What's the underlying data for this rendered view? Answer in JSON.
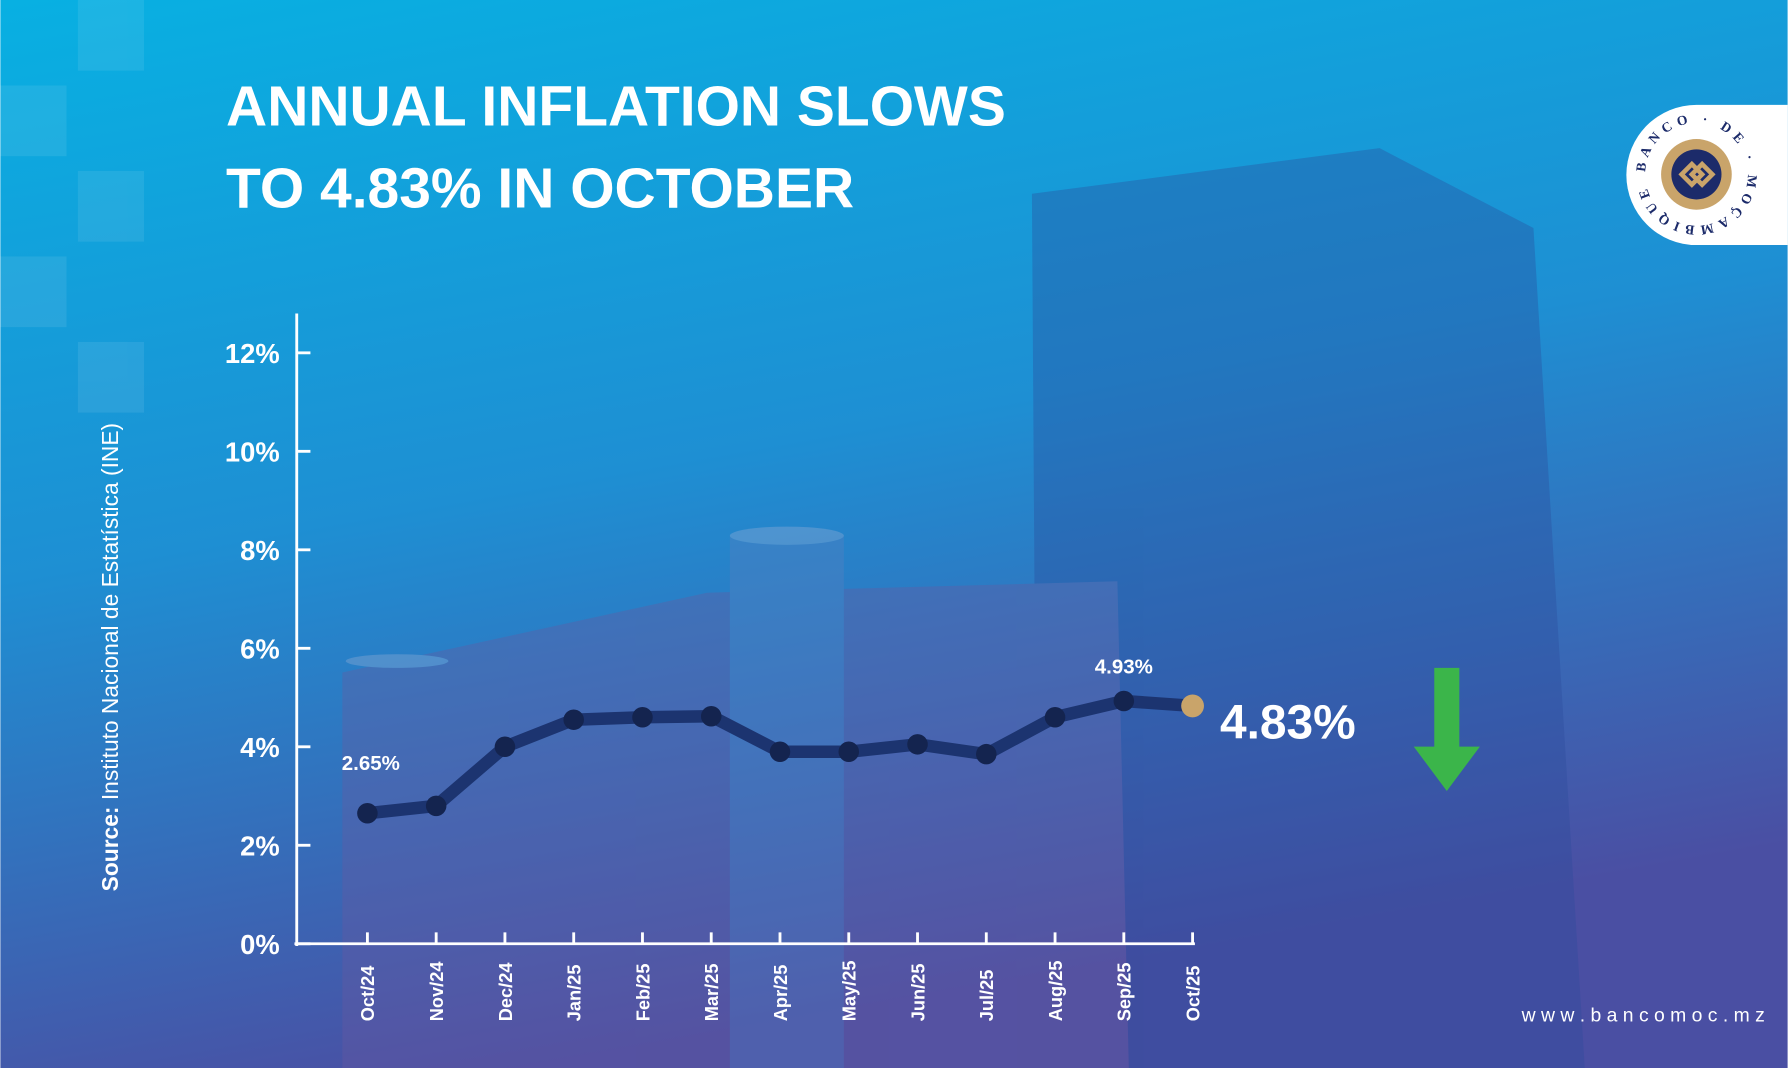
{
  "title": {
    "line1": "ANNUAL INFLATION SLOWS",
    "line2": "TO 4.83% IN OCTOBER"
  },
  "source": {
    "label": "Source:",
    "text": " Instituto Nacional de Estatística (INE)"
  },
  "website": "w w w . b a n c o m o c . m z",
  "logo": {
    "text": "BANCO · DE · MOÇAMBIQUE"
  },
  "highlight": {
    "value": "4.83%",
    "arrow": "down-arrow-icon",
    "arrow_color": "#3bb54a"
  },
  "colors": {
    "line": "#1c3470",
    "point": "#14244f",
    "last_point": "#c9a46a",
    "bg_top": "#08b0e2",
    "bg_bottom": "#3f55a5"
  },
  "chart_data": {
    "type": "line",
    "title": "",
    "xlabel": "",
    "ylabel": "",
    "categories": [
      "Oct/24",
      "Nov/24",
      "Dec/24",
      "Jan/25",
      "Feb/25",
      "Mar/25",
      "Apr/25",
      "May/25",
      "Jun/25",
      "Jul/25",
      "Aug/25",
      "Sep/25",
      "Oct/25"
    ],
    "values": [
      2.65,
      2.8,
      4.0,
      4.55,
      4.6,
      4.62,
      3.9,
      3.9,
      4.05,
      3.85,
      4.6,
      4.93,
      4.83
    ],
    "y_ticks": [
      "0%",
      "2%",
      "4%",
      "6%",
      "8%",
      "10%",
      "12%"
    ],
    "y_tick_values": [
      0,
      2,
      4,
      6,
      8,
      10,
      12
    ],
    "ylim": [
      0,
      12.8
    ],
    "data_labels": [
      {
        "index": 0,
        "text": "2.65%"
      },
      {
        "index": 11,
        "text": "4.93%"
      }
    ],
    "grid": false,
    "legend": "none"
  }
}
